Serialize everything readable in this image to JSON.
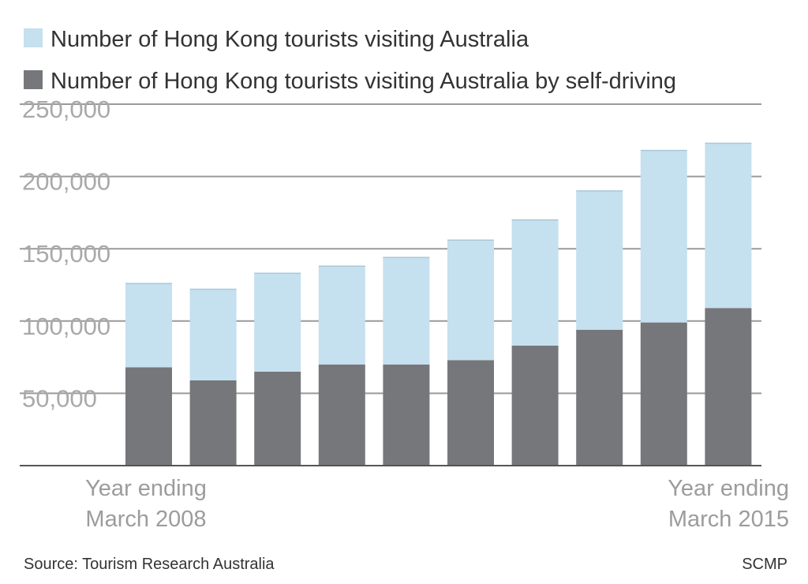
{
  "chart_data": {
    "type": "bar",
    "stacked": true,
    "series": [
      {
        "name": "Number of Hong Kong tourists visiting Australia by self-driving",
        "color": "#76777b",
        "values": [
          68000,
          59000,
          65000,
          70000,
          70000,
          73000,
          83000,
          94000,
          99000,
          109000
        ]
      },
      {
        "name": "Number of Hong Kong tourists visiting Australia",
        "color": "#c5e0ee",
        "values": [
          58000,
          63000,
          68000,
          68000,
          74000,
          83000,
          87000,
          96000,
          119000,
          114000
        ]
      }
    ],
    "legend": [
      {
        "label": "Number of Hong Kong tourists visiting Australia",
        "color": "#c5e0ee"
      },
      {
        "label": "Number of Hong Kong tourists visiting Australia by self-driving",
        "color": "#76777b"
      }
    ],
    "legend_position": "top-left",
    "yticks": [
      {
        "value": 50000,
        "label": "50,000"
      },
      {
        "value": 100000,
        "label": "100,000"
      },
      {
        "value": 150000,
        "label": "150,000"
      },
      {
        "value": 200000,
        "label": "200,000"
      },
      {
        "value": 250000,
        "label": "250,000"
      }
    ],
    "ylim": [
      0,
      250000
    ],
    "grid": true,
    "x_start_label": [
      "Year ending",
      "March 2008"
    ],
    "x_end_label": [
      "Year ending",
      "March 2015"
    ]
  },
  "footer": {
    "source": "Source: Tourism Research Australia",
    "brand": "SCMP"
  }
}
